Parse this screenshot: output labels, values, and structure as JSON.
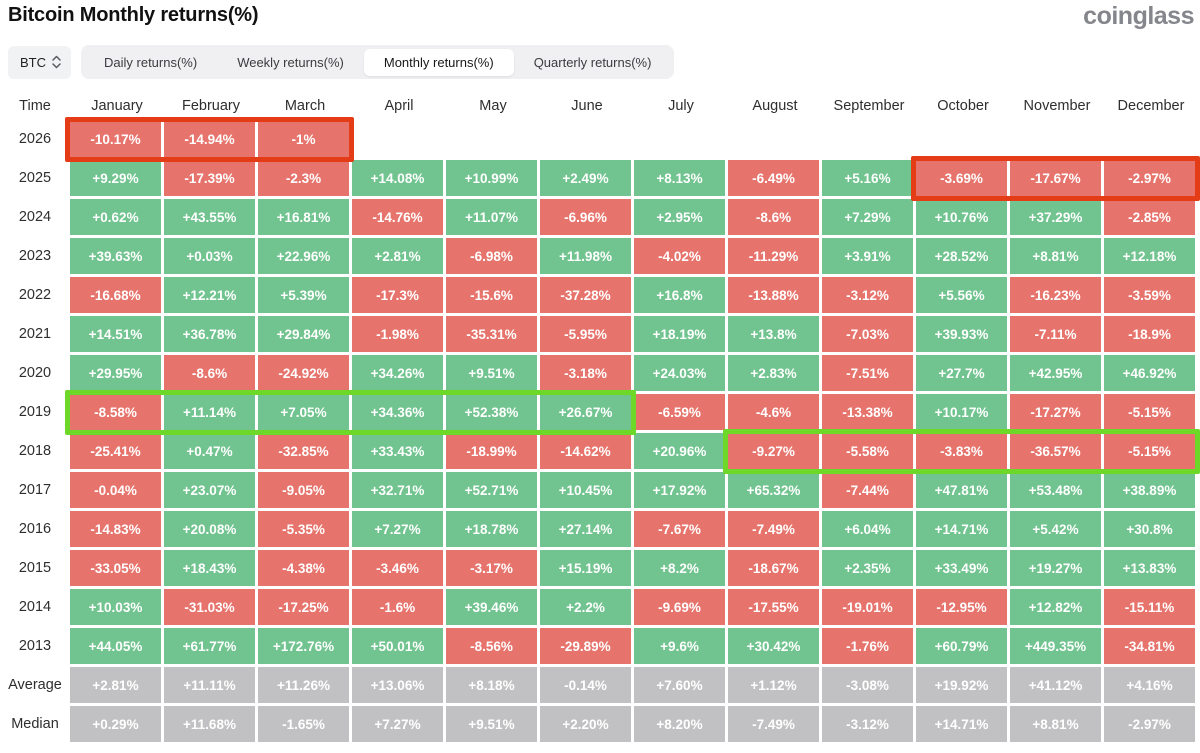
{
  "page_title": "Bitcoin Monthly returns(%)",
  "logo_text": "coinglass",
  "symbol_selector": {
    "value": "BTC"
  },
  "tabs": [
    {
      "label": "Daily returns(%)",
      "active": false
    },
    {
      "label": "Weekly returns(%)",
      "active": false
    },
    {
      "label": "Monthly returns(%)",
      "active": true
    },
    {
      "label": "Quarterly returns(%)",
      "active": false
    }
  ],
  "colors": {
    "positive": "#71c48f",
    "negative": "#e7746c",
    "neutral": "#c1c1c3",
    "highlight_red": "#e43c17",
    "highlight_green": "#6ed829"
  },
  "table": {
    "time_header": "Time",
    "columns": [
      "January",
      "February",
      "March",
      "April",
      "May",
      "June",
      "July",
      "August",
      "September",
      "October",
      "November",
      "December"
    ],
    "rows": [
      {
        "label": "2026",
        "type": "year",
        "values": [
          "-10.17%",
          "-14.94%",
          "-1%",
          "",
          "",
          "",
          "",
          "",
          "",
          "",
          "",
          ""
        ]
      },
      {
        "label": "2025",
        "type": "year",
        "values": [
          "+9.29%",
          "-17.39%",
          "-2.3%",
          "+14.08%",
          "+10.99%",
          "+2.49%",
          "+8.13%",
          "-6.49%",
          "+5.16%",
          "-3.69%",
          "-17.67%",
          "-2.97%"
        ]
      },
      {
        "label": "2024",
        "type": "year",
        "values": [
          "+0.62%",
          "+43.55%",
          "+16.81%",
          "-14.76%",
          "+11.07%",
          "-6.96%",
          "+2.95%",
          "-8.6%",
          "+7.29%",
          "+10.76%",
          "+37.29%",
          "-2.85%"
        ]
      },
      {
        "label": "2023",
        "type": "year",
        "values": [
          "+39.63%",
          "+0.03%",
          "+22.96%",
          "+2.81%",
          "-6.98%",
          "+11.98%",
          "-4.02%",
          "-11.29%",
          "+3.91%",
          "+28.52%",
          "+8.81%",
          "+12.18%"
        ]
      },
      {
        "label": "2022",
        "type": "year",
        "values": [
          "-16.68%",
          "+12.21%",
          "+5.39%",
          "-17.3%",
          "-15.6%",
          "-37.28%",
          "+16.8%",
          "-13.88%",
          "-3.12%",
          "+5.56%",
          "-16.23%",
          "-3.59%"
        ]
      },
      {
        "label": "2021",
        "type": "year",
        "values": [
          "+14.51%",
          "+36.78%",
          "+29.84%",
          "-1.98%",
          "-35.31%",
          "-5.95%",
          "+18.19%",
          "+13.8%",
          "-7.03%",
          "+39.93%",
          "-7.11%",
          "-18.9%"
        ]
      },
      {
        "label": "2020",
        "type": "year",
        "values": [
          "+29.95%",
          "-8.6%",
          "-24.92%",
          "+34.26%",
          "+9.51%",
          "-3.18%",
          "+24.03%",
          "+2.83%",
          "-7.51%",
          "+27.7%",
          "+42.95%",
          "+46.92%"
        ]
      },
      {
        "label": "2019",
        "type": "year",
        "values": [
          "-8.58%",
          "+11.14%",
          "+7.05%",
          "+34.36%",
          "+52.38%",
          "+26.67%",
          "-6.59%",
          "-4.6%",
          "-13.38%",
          "+10.17%",
          "-17.27%",
          "-5.15%"
        ]
      },
      {
        "label": "2018",
        "type": "year",
        "values": [
          "-25.41%",
          "+0.47%",
          "-32.85%",
          "+33.43%",
          "-18.99%",
          "-14.62%",
          "+20.96%",
          "-9.27%",
          "-5.58%",
          "-3.83%",
          "-36.57%",
          "-5.15%"
        ]
      },
      {
        "label": "2017",
        "type": "year",
        "values": [
          "-0.04%",
          "+23.07%",
          "-9.05%",
          "+32.71%",
          "+52.71%",
          "+10.45%",
          "+17.92%",
          "+65.32%",
          "-7.44%",
          "+47.81%",
          "+53.48%",
          "+38.89%"
        ]
      },
      {
        "label": "2016",
        "type": "year",
        "values": [
          "-14.83%",
          "+20.08%",
          "-5.35%",
          "+7.27%",
          "+18.78%",
          "+27.14%",
          "-7.67%",
          "-7.49%",
          "+6.04%",
          "+14.71%",
          "+5.42%",
          "+30.8%"
        ]
      },
      {
        "label": "2015",
        "type": "year",
        "values": [
          "-33.05%",
          "+18.43%",
          "-4.38%",
          "-3.46%",
          "-3.17%",
          "+15.19%",
          "+8.2%",
          "-18.67%",
          "+2.35%",
          "+33.49%",
          "+19.27%",
          "+13.83%"
        ]
      },
      {
        "label": "2014",
        "type": "year",
        "values": [
          "+10.03%",
          "-31.03%",
          "-17.25%",
          "-1.6%",
          "+39.46%",
          "+2.2%",
          "-9.69%",
          "-17.55%",
          "-19.01%",
          "-12.95%",
          "+12.82%",
          "-15.11%"
        ]
      },
      {
        "label": "2013",
        "type": "year",
        "values": [
          "+44.05%",
          "+61.77%",
          "+172.76%",
          "+50.01%",
          "-8.56%",
          "-29.89%",
          "+9.6%",
          "+30.42%",
          "-1.76%",
          "+60.79%",
          "+449.35%",
          "-34.81%"
        ]
      },
      {
        "label": "Average",
        "type": "summary",
        "values": [
          "+2.81%",
          "+11.11%",
          "+11.26%",
          "+13.06%",
          "+8.18%",
          "-0.14%",
          "+7.60%",
          "+1.12%",
          "-3.08%",
          "+19.92%",
          "+41.12%",
          "+4.16%"
        ]
      },
      {
        "label": "Median",
        "type": "summary",
        "values": [
          "+0.29%",
          "+11.68%",
          "-1.65%",
          "+7.27%",
          "+9.51%",
          "+2.20%",
          "+8.20%",
          "-7.49%",
          "-3.12%",
          "+14.71%",
          "+8.81%",
          "-2.97%"
        ]
      }
    ],
    "highlights": [
      {
        "row": "2026",
        "start": 0,
        "end": 2,
        "color": "red"
      },
      {
        "row": "2025",
        "start": 9,
        "end": 11,
        "color": "red"
      },
      {
        "row": "2019",
        "start": 0,
        "end": 5,
        "color": "green"
      },
      {
        "row": "2018",
        "start": 7,
        "end": 11,
        "color": "green"
      }
    ]
  }
}
